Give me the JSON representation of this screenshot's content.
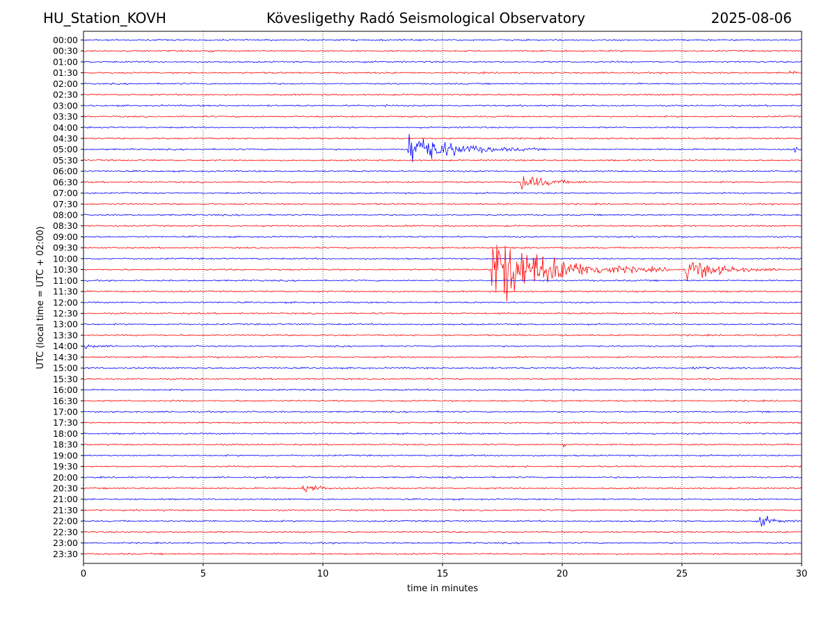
{
  "header": {
    "station": "HU_Station_KOVH",
    "title": "Kövesligethy Radó Seismological Observatory",
    "date": "2025-08-06"
  },
  "chart_data": {
    "type": "line",
    "subtype": "helicorder",
    "xlabel": "time in minutes",
    "ylabel": "UTC (local time = UTC + 02:00)",
    "xlim": [
      0,
      30
    ],
    "x_ticks": [
      0,
      5,
      10,
      15,
      20,
      25,
      30
    ],
    "x_tick_labels": [
      "0",
      "5",
      "10",
      "15",
      "20",
      "25",
      "30"
    ],
    "grid": "vertical dotted at major x ticks",
    "line_colors": [
      "#0000ff",
      "#ff0000"
    ],
    "color_pattern": "alternating blue/red per row, starting blue at 00:00",
    "rows": [
      "00:00",
      "00:30",
      "01:00",
      "01:30",
      "02:00",
      "02:30",
      "03:00",
      "03:30",
      "04:00",
      "04:30",
      "05:00",
      "05:30",
      "06:00",
      "06:30",
      "07:00",
      "07:30",
      "08:00",
      "08:30",
      "09:00",
      "09:30",
      "10:00",
      "10:30",
      "11:00",
      "11:30",
      "12:00",
      "12:30",
      "13:00",
      "13:30",
      "14:00",
      "14:30",
      "15:00",
      "15:30",
      "16:00",
      "16:30",
      "17:00",
      "17:30",
      "18:00",
      "18:30",
      "19:00",
      "19:30",
      "20:00",
      "20:30",
      "21:00",
      "21:30",
      "22:00",
      "22:30",
      "23:00",
      "23:30"
    ],
    "events": [
      {
        "row": "00:30",
        "start_min": 5.3,
        "duration_min": 0.6,
        "amplitude": 0.25
      },
      {
        "row": "01:30",
        "start_min": 29.5,
        "duration_min": 0.5,
        "amplitude": 0.3
      },
      {
        "row": "03:00",
        "start_min": 12.6,
        "duration_min": 0.3,
        "amplitude": 0.2
      },
      {
        "row": "05:00",
        "start_min": 13.6,
        "duration_min": 5.5,
        "amplitude": 2.8
      },
      {
        "row": "05:00",
        "start_min": 29.7,
        "duration_min": 0.3,
        "amplitude": 0.5
      },
      {
        "row": "06:30",
        "start_min": 18.3,
        "duration_min": 3.0,
        "amplitude": 1.4
      },
      {
        "row": "10:30",
        "start_min": 17.1,
        "duration_min": 7.5,
        "amplitude": 6.0
      },
      {
        "row": "10:30",
        "start_min": 25.2,
        "duration_min": 4.0,
        "amplitude": 2.0
      },
      {
        "row": "14:00",
        "start_min": 0.0,
        "duration_min": 1.6,
        "amplitude": 0.35
      },
      {
        "row": "14:30",
        "start_min": 5.5,
        "duration_min": 0.5,
        "amplitude": 0.4
      },
      {
        "row": "15:00",
        "start_min": 25.5,
        "duration_min": 1.5,
        "amplitude": 0.25
      },
      {
        "row": "18:30",
        "start_min": 20.1,
        "duration_min": 0.2,
        "amplitude": 0.3
      },
      {
        "row": "20:30",
        "start_min": 9.2,
        "duration_min": 1.8,
        "amplitude": 0.9
      },
      {
        "row": "22:00",
        "start_min": 28.3,
        "duration_min": 1.7,
        "amplitude": 0.9
      }
    ]
  }
}
